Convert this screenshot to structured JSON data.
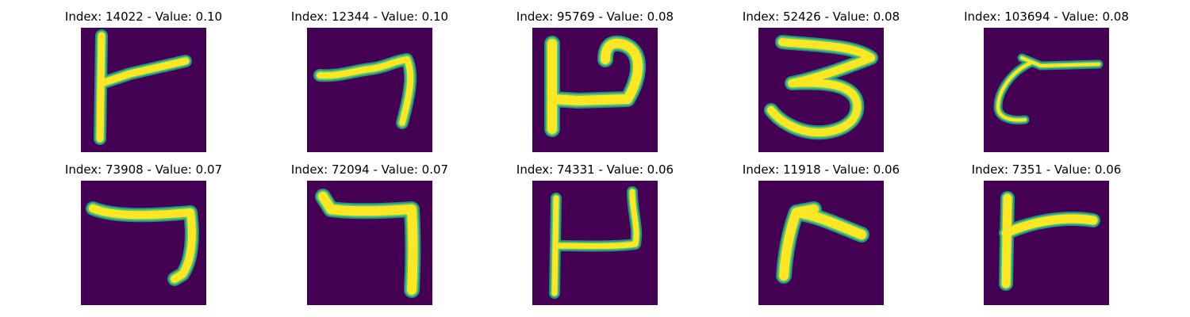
{
  "figure": {
    "colors": {
      "background": "#440154",
      "stroke_outer": "#21918c",
      "stroke_mid": "#5ec962",
      "stroke_inner": "#fde725"
    },
    "panels": [
      {
        "index": 14022,
        "value": "0.10",
        "title": "Index: 14022 - Value: 0.10"
      },
      {
        "index": 12344,
        "value": "0.10",
        "title": "Index: 12344 - Value: 0.10"
      },
      {
        "index": 95769,
        "value": "0.08",
        "title": "Index: 95769 - Value: 0.08"
      },
      {
        "index": 52426,
        "value": "0.08",
        "title": "Index: 52426 - Value: 0.08"
      },
      {
        "index": 103694,
        "value": "0.08",
        "title": "Index: 103694 - Value: 0.08"
      },
      {
        "index": 73908,
        "value": "0.07",
        "title": "Index: 73908 - Value: 0.07"
      },
      {
        "index": 72094,
        "value": "0.07",
        "title": "Index: 72094 - Value: 0.07"
      },
      {
        "index": 74331,
        "value": "0.06",
        "title": "Index: 74331 - Value: 0.06"
      },
      {
        "index": 11918,
        "value": "0.06",
        "title": "Index: 11918 - Value: 0.06"
      },
      {
        "index": 7351,
        "value": "0.06",
        "title": "Index: 7351 - Value: 0.06"
      }
    ]
  }
}
